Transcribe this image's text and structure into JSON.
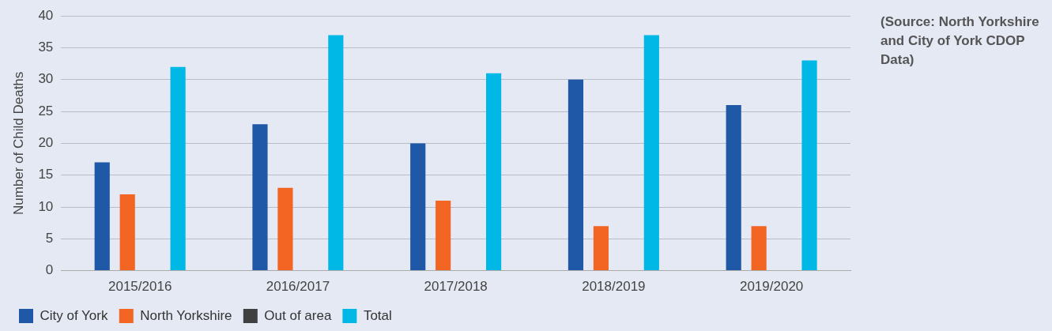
{
  "chart_data": {
    "type": "bar",
    "ylabel": "Number of Child Deaths",
    "categories": [
      "2015/2016",
      "2016/2017",
      "2017/2018",
      "2018/2019",
      "2019/2020"
    ],
    "series": [
      {
        "name": "City of York",
        "color": "#1f58a6",
        "values": [
          17,
          23,
          20,
          30,
          26
        ]
      },
      {
        "name": "North Yorkshire",
        "color": "#f26522",
        "values": [
          12,
          13,
          11,
          7,
          7
        ]
      },
      {
        "name": "Out of area",
        "color": "#404040",
        "values": [
          0,
          0,
          0,
          0,
          0
        ]
      },
      {
        "name": "Total",
        "color": "#00b8e5",
        "values": [
          32,
          37,
          31,
          37,
          33
        ]
      }
    ],
    "ylim": [
      0,
      40
    ],
    "yticks": [
      0,
      5,
      10,
      15,
      20,
      25,
      30,
      35,
      40
    ],
    "grid": "y",
    "legend": "bottom",
    "annotations": [
      "(Source:  North Yorkshire and City of York CDOP Data)"
    ]
  }
}
